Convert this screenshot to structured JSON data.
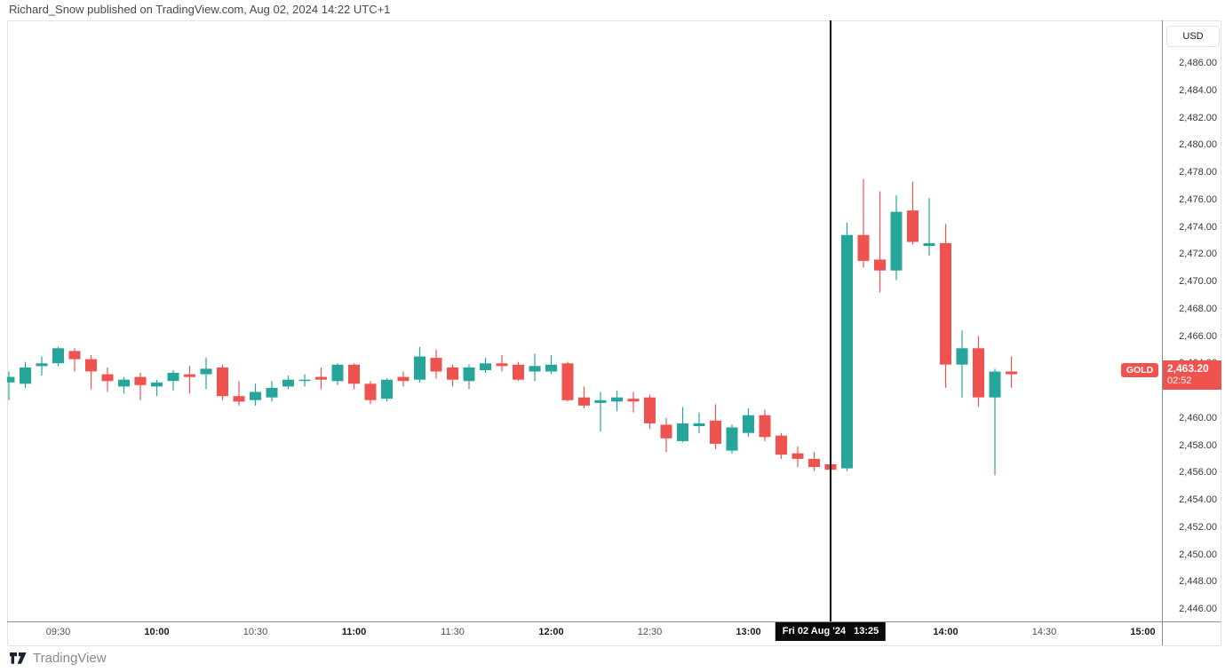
{
  "header": {
    "published_line": "Richard_Snow published on TradingView.com, Aug 02, 2024 14:22 UTC+1"
  },
  "footer": {
    "brand": "TradingView"
  },
  "chart": {
    "colors": {
      "up": "#26a69a",
      "down": "#ef5350",
      "marker": "#000000",
      "last_label_bg": "#ef5350"
    },
    "marker": {
      "index": 50,
      "date": "Fri 02 Aug '24",
      "time": "13:25"
    },
    "last": {
      "symbol": "GOLD",
      "price": "2,463.20",
      "countdown": "02:52",
      "value": 2463.2
    },
    "price_axis": {
      "currency": "USD",
      "ticks": [
        {
          "value": 2486,
          "label": "2,486.00"
        },
        {
          "value": 2484,
          "label": "2,484.00"
        },
        {
          "value": 2482,
          "label": "2,482.00"
        },
        {
          "value": 2480,
          "label": "2,480.00"
        },
        {
          "value": 2478,
          "label": "2,478.00"
        },
        {
          "value": 2476,
          "label": "2,476.00"
        },
        {
          "value": 2474,
          "label": "2,474.00"
        },
        {
          "value": 2472,
          "label": "2,472.00"
        },
        {
          "value": 2470,
          "label": "2,470.00"
        },
        {
          "value": 2468,
          "label": "2,468.00"
        },
        {
          "value": 2466,
          "label": "2,466.00"
        },
        {
          "value": 2464,
          "label": "2,464.00"
        },
        {
          "value": 2460,
          "label": "2,460.00"
        },
        {
          "value": 2458,
          "label": "2,458.00"
        },
        {
          "value": 2456,
          "label": "2,456.00"
        },
        {
          "value": 2454,
          "label": "2,454.00"
        },
        {
          "value": 2452,
          "label": "2,452.00"
        },
        {
          "value": 2450,
          "label": "2,450.00"
        },
        {
          "value": 2448,
          "label": "2,448.00"
        },
        {
          "value": 2446,
          "label": "2,446.00"
        }
      ]
    },
    "time_axis": {
      "ticks": [
        {
          "label": "09:30",
          "i": 3,
          "bold": false
        },
        {
          "label": "10:00",
          "i": 9,
          "bold": true
        },
        {
          "label": "10:30",
          "i": 15,
          "bold": false
        },
        {
          "label": "11:00",
          "i": 21,
          "bold": true
        },
        {
          "label": "11:30",
          "i": 27,
          "bold": false
        },
        {
          "label": "12:00",
          "i": 33,
          "bold": true
        },
        {
          "label": "12:30",
          "i": 39,
          "bold": false
        },
        {
          "label": "13:00",
          "i": 45,
          "bold": true
        },
        {
          "label": "14:00",
          "i": 57,
          "bold": true
        },
        {
          "label": "14:30",
          "i": 63,
          "bold": false
        },
        {
          "label": "15:00",
          "i": 69,
          "bold": true
        }
      ]
    }
  },
  "chart_data": {
    "type": "candlestick",
    "symbol": "GOLD",
    "currency": "USD",
    "interval_minutes": 5,
    "session_date": "Fri 02 Aug '24",
    "visible_price_range": [
      2445.5,
      2489.1
    ],
    "visible_time_range": [
      "09:15",
      "15:20"
    ],
    "grid": false,
    "marker_time": "13:25",
    "last_price": 2463.2,
    "candles": [
      [
        "09:15",
        2462.6,
        2463.4,
        2461.3,
        2463.0
      ],
      [
        "09:20",
        2462.5,
        2464.1,
        2462.2,
        2463.7
      ],
      [
        "09:25",
        2463.8,
        2464.5,
        2463.1,
        2464.0
      ],
      [
        "09:30",
        2464.0,
        2465.2,
        2463.8,
        2465.1
      ],
      [
        "09:35",
        2464.9,
        2465.1,
        2463.4,
        2464.3
      ],
      [
        "09:40",
        2464.3,
        2464.6,
        2462.1,
        2463.4
      ],
      [
        "09:45",
        2463.2,
        2463.7,
        2461.9,
        2462.7
      ],
      [
        "09:50",
        2462.3,
        2463.0,
        2461.8,
        2462.8
      ],
      [
        "09:55",
        2463.0,
        2463.3,
        2461.3,
        2462.4
      ],
      [
        "10:00",
        2462.3,
        2462.8,
        2461.6,
        2462.6
      ],
      [
        "10:05",
        2462.7,
        2463.5,
        2462.0,
        2463.3
      ],
      [
        "10:10",
        2463.2,
        2463.8,
        2461.8,
        2463.0
      ],
      [
        "10:15",
        2463.2,
        2464.4,
        2462.1,
        2463.6
      ],
      [
        "10:20",
        2463.7,
        2463.9,
        2461.3,
        2461.6
      ],
      [
        "10:25",
        2461.6,
        2462.7,
        2460.9,
        2461.2
      ],
      [
        "10:30",
        2461.3,
        2462.5,
        2460.9,
        2461.9
      ],
      [
        "10:35",
        2461.5,
        2462.7,
        2461.2,
        2462.2
      ],
      [
        "10:40",
        2462.3,
        2463.1,
        2462.1,
        2462.8
      ],
      [
        "10:45",
        2462.7,
        2463.2,
        2462.3,
        2462.8
      ],
      [
        "10:50",
        2463.0,
        2463.7,
        2462.1,
        2462.8
      ],
      [
        "10:55",
        2462.7,
        2464.0,
        2462.4,
        2463.9
      ],
      [
        "11:00",
        2463.9,
        2464.0,
        2462.1,
        2462.5
      ],
      [
        "11:05",
        2462.5,
        2462.7,
        2461.0,
        2461.3
      ],
      [
        "11:10",
        2461.4,
        2462.9,
        2461.2,
        2462.8
      ],
      [
        "11:15",
        2463.0,
        2463.4,
        2462.3,
        2462.7
      ],
      [
        "11:20",
        2462.8,
        2465.2,
        2462.6,
        2464.5
      ],
      [
        "11:25",
        2464.4,
        2465.0,
        2462.9,
        2463.4
      ],
      [
        "11:30",
        2463.7,
        2463.9,
        2462.3,
        2462.8
      ],
      [
        "11:35",
        2462.7,
        2463.9,
        2462.1,
        2463.7
      ],
      [
        "11:40",
        2463.5,
        2464.4,
        2463.3,
        2464.0
      ],
      [
        "11:45",
        2464.0,
        2464.6,
        2463.4,
        2463.8
      ],
      [
        "11:50",
        2463.9,
        2464.1,
        2462.7,
        2462.8
      ],
      [
        "11:55",
        2463.4,
        2464.7,
        2462.7,
        2463.8
      ],
      [
        "12:00",
        2463.4,
        2464.6,
        2463.2,
        2463.9
      ],
      [
        "12:05",
        2464.0,
        2464.1,
        2461.2,
        2461.3
      ],
      [
        "12:10",
        2461.5,
        2462.3,
        2460.7,
        2460.9
      ],
      [
        "12:15",
        2461.1,
        2461.9,
        2459.0,
        2461.3
      ],
      [
        "12:20",
        2461.2,
        2462.0,
        2460.5,
        2461.5
      ],
      [
        "12:25",
        2461.4,
        2461.9,
        2460.4,
        2461.2
      ],
      [
        "12:30",
        2461.5,
        2461.7,
        2459.2,
        2459.6
      ],
      [
        "12:35",
        2459.5,
        2460.0,
        2457.5,
        2458.5
      ],
      [
        "12:40",
        2458.3,
        2460.8,
        2458.2,
        2459.6
      ],
      [
        "12:45",
        2459.4,
        2460.4,
        2458.9,
        2459.6
      ],
      [
        "12:50",
        2459.8,
        2461.0,
        2457.7,
        2458.1
      ],
      [
        "12:55",
        2457.6,
        2459.5,
        2457.4,
        2459.3
      ],
      [
        "13:00",
        2458.9,
        2460.7,
        2458.6,
        2460.2
      ],
      [
        "13:05",
        2460.2,
        2460.6,
        2458.3,
        2458.6
      ],
      [
        "13:10",
        2458.7,
        2458.9,
        2457.0,
        2457.3
      ],
      [
        "13:15",
        2457.4,
        2457.9,
        2456.4,
        2457.0
      ],
      [
        "13:20",
        2457.0,
        2457.5,
        2456.1,
        2456.4
      ],
      [
        "13:25",
        2456.6,
        2457.0,
        2455.9,
        2456.2
      ],
      [
        "13:30",
        2456.3,
        2474.3,
        2456.1,
        2473.4
      ],
      [
        "13:35",
        2473.4,
        2477.5,
        2471.0,
        2471.5
      ],
      [
        "13:40",
        2471.6,
        2476.6,
        2469.2,
        2470.8
      ],
      [
        "13:45",
        2470.8,
        2476.3,
        2470.1,
        2475.1
      ],
      [
        "13:50",
        2475.2,
        2477.3,
        2472.7,
        2472.9
      ],
      [
        "13:55",
        2472.6,
        2476.1,
        2471.9,
        2472.8
      ],
      [
        "14:00",
        2472.8,
        2474.2,
        2462.2,
        2463.9
      ],
      [
        "14:05",
        2463.9,
        2466.4,
        2461.5,
        2465.1
      ],
      [
        "14:10",
        2465.1,
        2466.0,
        2460.8,
        2461.5
      ],
      [
        "14:15",
        2461.5,
        2463.6,
        2455.8,
        2463.4
      ],
      [
        "14:20",
        2463.4,
        2464.5,
        2462.2,
        2463.2
      ]
    ]
  }
}
